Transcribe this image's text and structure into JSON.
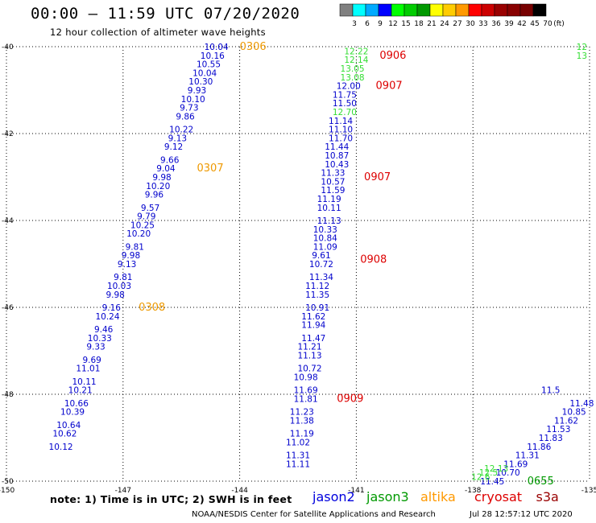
{
  "header": {
    "title": "00:00 – 11:59 UTC 07/20/2020",
    "subtitle": "12 hour collection of altimeter wave heights"
  },
  "footer": {
    "note": "note:  1) Time is in UTC;  2) SWH is in feet",
    "satellites": [
      {
        "name": "jason2",
        "color": "#0000dd"
      },
      {
        "name": "jason3",
        "color": "#009900"
      },
      {
        "name": "altika",
        "color": "#ff9900"
      },
      {
        "name": "cryosat",
        "color": "#dd0000"
      },
      {
        "name": "s3a",
        "color": "#990000"
      }
    ],
    "credit": "NOAA/NESDIS Center for Satellite Applications and Research",
    "timestamp": "Jul 28 12:57:12 UTC 2020"
  },
  "colorbar": {
    "labels": [
      "3",
      "6",
      "9",
      "12",
      "15",
      "18",
      "21",
      "24",
      "27",
      "30",
      "33",
      "36",
      "39",
      "42",
      "45",
      "70",
      "(ft)"
    ],
    "colors": [
      "#808080",
      "#00ffff",
      "#00aaff",
      "#0000ff",
      "#00ff00",
      "#00cc00",
      "#009900",
      "#ffff00",
      "#ffcc00",
      "#ff9900",
      "#ff0000",
      "#cc0000",
      "#990000",
      "#880000",
      "#770000",
      "#000000"
    ]
  },
  "chart_data": {
    "type": "scatter",
    "title": "",
    "xlabel": "",
    "ylabel": "",
    "xlim": [
      -150,
      -135
    ],
    "ylim": [
      -50,
      -40
    ],
    "grid": true,
    "x_ticks": [
      "-150",
      "-147",
      "-144",
      "-141",
      "-138",
      "-135"
    ],
    "y_ticks": [
      "-40",
      "-42",
      "-44",
      "-46",
      "-48",
      "-50"
    ],
    "x_tick_values": [
      -150,
      -147,
      -144,
      -141,
      -138,
      -135
    ],
    "y_tick_values": [
      -40,
      -42,
      -44,
      -46,
      -48,
      -50
    ],
    "series": [
      {
        "name": "jason2",
        "color": "#0000cc",
        "points": [
          {
            "lon": -144.6,
            "lat": -40.0,
            "v": "10.04"
          },
          {
            "lon": -144.7,
            "lat": -40.2,
            "v": "10.16"
          },
          {
            "lon": -144.8,
            "lat": -40.4,
            "v": "10.55"
          },
          {
            "lon": -144.9,
            "lat": -40.6,
            "v": "10.04"
          },
          {
            "lon": -145.0,
            "lat": -40.8,
            "v": "10.30"
          },
          {
            "lon": -145.1,
            "lat": -41.0,
            "v": "9.93"
          },
          {
            "lon": -145.2,
            "lat": -41.2,
            "v": "10.10"
          },
          {
            "lon": -145.3,
            "lat": -41.4,
            "v": "9.73"
          },
          {
            "lon": -145.4,
            "lat": -41.6,
            "v": "9.86"
          },
          {
            "lon": -145.5,
            "lat": -41.9,
            "v": "10.22"
          },
          {
            "lon": -145.6,
            "lat": -42.1,
            "v": "9.13"
          },
          {
            "lon": -145.7,
            "lat": -42.3,
            "v": "9.12"
          },
          {
            "lon": -145.8,
            "lat": -42.6,
            "v": "9.66"
          },
          {
            "lon": -145.9,
            "lat": -42.8,
            "v": "9.04"
          },
          {
            "lon": -146.0,
            "lat": -43.0,
            "v": "9.98"
          },
          {
            "lon": -146.1,
            "lat": -43.2,
            "v": "10.20"
          },
          {
            "lon": -146.2,
            "lat": -43.4,
            "v": "9.96"
          },
          {
            "lon": -146.3,
            "lat": -43.7,
            "v": "9.57"
          },
          {
            "lon": -146.4,
            "lat": -43.9,
            "v": "9.79"
          },
          {
            "lon": -146.5,
            "lat": -44.1,
            "v": "10.25"
          },
          {
            "lon": -146.6,
            "lat": -44.3,
            "v": "10.20"
          },
          {
            "lon": -146.7,
            "lat": -44.6,
            "v": "9.81"
          },
          {
            "lon": -146.8,
            "lat": -44.8,
            "v": "9.98"
          },
          {
            "lon": -146.9,
            "lat": -45.0,
            "v": "9.13"
          },
          {
            "lon": -147.0,
            "lat": -45.3,
            "v": "9.81"
          },
          {
            "lon": -147.1,
            "lat": -45.5,
            "v": "10.03"
          },
          {
            "lon": -147.2,
            "lat": -45.7,
            "v": "9.98"
          },
          {
            "lon": -147.3,
            "lat": -46.0,
            "v": "9.16"
          },
          {
            "lon": -147.4,
            "lat": -46.2,
            "v": "10.24"
          },
          {
            "lon": -147.5,
            "lat": -46.5,
            "v": "9.46"
          },
          {
            "lon": -147.6,
            "lat": -46.7,
            "v": "10.33"
          },
          {
            "lon": -147.7,
            "lat": -46.9,
            "v": "9.33"
          },
          {
            "lon": -147.8,
            "lat": -47.2,
            "v": "9.69"
          },
          {
            "lon": -147.9,
            "lat": -47.4,
            "v": "11.01"
          },
          {
            "lon": -148.0,
            "lat": -47.7,
            "v": "10.11"
          },
          {
            "lon": -148.1,
            "lat": -47.9,
            "v": "10.21"
          },
          {
            "lon": -148.2,
            "lat": -48.2,
            "v": "10.66"
          },
          {
            "lon": -148.3,
            "lat": -48.4,
            "v": "10.39"
          },
          {
            "lon": -148.4,
            "lat": -48.7,
            "v": "10.64"
          },
          {
            "lon": -148.5,
            "lat": -48.9,
            "v": "10.62"
          },
          {
            "lon": -148.6,
            "lat": -49.2,
            "v": "10.12"
          },
          {
            "lon": -141.2,
            "lat": -40.9,
            "v": "12.00"
          },
          {
            "lon": -141.3,
            "lat": -41.1,
            "v": "11.75"
          },
          {
            "lon": -141.3,
            "lat": -41.3,
            "v": "11.50"
          },
          {
            "lon": -141.4,
            "lat": -41.7,
            "v": "11.14"
          },
          {
            "lon": -141.4,
            "lat": -41.9,
            "v": "11.10"
          },
          {
            "lon": -141.4,
            "lat": -42.1,
            "v": "11.70"
          },
          {
            "lon": -141.5,
            "lat": -42.3,
            "v": "11.44"
          },
          {
            "lon": -141.5,
            "lat": -42.5,
            "v": "10.87"
          },
          {
            "lon": -141.5,
            "lat": -42.7,
            "v": "10.43"
          },
          {
            "lon": -141.6,
            "lat": -42.9,
            "v": "11.33"
          },
          {
            "lon": -141.6,
            "lat": -43.1,
            "v": "10.57"
          },
          {
            "lon": -141.6,
            "lat": -43.3,
            "v": "11.59"
          },
          {
            "lon": -141.7,
            "lat": -43.5,
            "v": "11.19"
          },
          {
            "lon": -141.7,
            "lat": -43.7,
            "v": "10.11"
          },
          {
            "lon": -141.7,
            "lat": -44.0,
            "v": "11.13"
          },
          {
            "lon": -141.8,
            "lat": -44.2,
            "v": "10.33"
          },
          {
            "lon": -141.8,
            "lat": -44.4,
            "v": "10.84"
          },
          {
            "lon": -141.8,
            "lat": -44.6,
            "v": "11.09"
          },
          {
            "lon": -141.9,
            "lat": -44.8,
            "v": "9.61"
          },
          {
            "lon": -141.9,
            "lat": -45.0,
            "v": "10.72"
          },
          {
            "lon": -141.9,
            "lat": -45.3,
            "v": "11.34"
          },
          {
            "lon": -142.0,
            "lat": -45.5,
            "v": "11.12"
          },
          {
            "lon": -142.0,
            "lat": -45.7,
            "v": "11.35"
          },
          {
            "lon": -142.0,
            "lat": -46.0,
            "v": "10.91"
          },
          {
            "lon": -142.1,
            "lat": -46.2,
            "v": "11.62"
          },
          {
            "lon": -142.1,
            "lat": -46.4,
            "v": "11.94"
          },
          {
            "lon": -142.1,
            "lat": -46.7,
            "v": "11.47"
          },
          {
            "lon": -142.2,
            "lat": -46.9,
            "v": "11.21"
          },
          {
            "lon": -142.2,
            "lat": -47.1,
            "v": "11.13"
          },
          {
            "lon": -142.2,
            "lat": -47.4,
            "v": "10.72"
          },
          {
            "lon": -142.3,
            "lat": -47.6,
            "v": "10.98"
          },
          {
            "lon": -142.3,
            "lat": -47.9,
            "v": "11.69"
          },
          {
            "lon": -142.3,
            "lat": -48.1,
            "v": "11.81"
          },
          {
            "lon": -142.4,
            "lat": -48.4,
            "v": "11.23"
          },
          {
            "lon": -142.4,
            "lat": -48.6,
            "v": "11.38"
          },
          {
            "lon": -142.4,
            "lat": -48.9,
            "v": "11.19"
          },
          {
            "lon": -142.5,
            "lat": -49.1,
            "v": "11.02"
          },
          {
            "lon": -142.5,
            "lat": -49.4,
            "v": "11.31"
          },
          {
            "lon": -142.5,
            "lat": -49.6,
            "v": "11.11"
          },
          {
            "lon": -136.0,
            "lat": -47.9,
            "v": "11.5"
          },
          {
            "lon": -135.2,
            "lat": -48.2,
            "v": "11.48"
          },
          {
            "lon": -135.4,
            "lat": -48.4,
            "v": "10.85"
          },
          {
            "lon": -135.6,
            "lat": -48.6,
            "v": "11.62"
          },
          {
            "lon": -135.8,
            "lat": -48.8,
            "v": "11.53"
          },
          {
            "lon": -136.0,
            "lat": -49.0,
            "v": "11.83"
          },
          {
            "lon": -136.3,
            "lat": -49.2,
            "v": "11.86"
          },
          {
            "lon": -136.6,
            "lat": -49.4,
            "v": "11.31"
          },
          {
            "lon": -136.9,
            "lat": -49.6,
            "v": "11.69"
          },
          {
            "lon": -137.1,
            "lat": -49.8,
            "v": "10.70"
          },
          {
            "lon": -137.5,
            "lat": -50.0,
            "v": "11.45"
          }
        ]
      },
      {
        "name": "jason3",
        "color": "#33dd33",
        "points": [
          {
            "lon": -141.0,
            "lat": -40.1,
            "v": "12.22"
          },
          {
            "lon": -141.0,
            "lat": -40.3,
            "v": "12.14"
          },
          {
            "lon": -141.1,
            "lat": -40.5,
            "v": "13.05"
          },
          {
            "lon": -141.1,
            "lat": -40.7,
            "v": "13.08"
          },
          {
            "lon": -141.3,
            "lat": -41.5,
            "v": "12.70"
          },
          {
            "lon": -135.2,
            "lat": -40.0,
            "v": "12"
          },
          {
            "lon": -135.2,
            "lat": -40.2,
            "v": "13"
          },
          {
            "lon": -137.4,
            "lat": -49.7,
            "v": "12.13"
          },
          {
            "lon": -137.6,
            "lat": -49.8,
            "v": "12.5"
          },
          {
            "lon": -137.8,
            "lat": -49.9,
            "v": "12.6"
          }
        ]
      },
      {
        "name": "altika",
        "color": "#ee9900",
        "points": [
          {
            "lon": -144.0,
            "lat": -40.0,
            "v": "0306"
          },
          {
            "lon": -145.1,
            "lat": -42.8,
            "v": "0307"
          },
          {
            "lon": -146.6,
            "lat": -46.0,
            "v": "0308"
          }
        ]
      },
      {
        "name": "time-labels-red",
        "color": "#dd0000",
        "points": [
          {
            "lon": -140.4,
            "lat": -40.2,
            "v": "0906"
          },
          {
            "lon": -140.5,
            "lat": -40.9,
            "v": "0907"
          },
          {
            "lon": -140.8,
            "lat": -43.0,
            "v": "0907"
          },
          {
            "lon": -140.9,
            "lat": -44.9,
            "v": "0908"
          },
          {
            "lon": -141.5,
            "lat": -48.1,
            "v": "0909"
          }
        ]
      },
      {
        "name": "time-labels-green",
        "color": "#009900",
        "points": [
          {
            "lon": -136.6,
            "lat": -50.0,
            "v": "0655"
          }
        ]
      }
    ]
  }
}
